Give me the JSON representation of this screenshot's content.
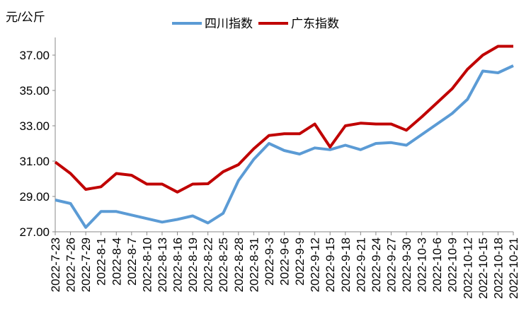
{
  "chart_data": {
    "type": "line",
    "y_axis_label": "元/公斤",
    "categories": [
      "2022-7-23",
      "2022-7-26",
      "2022-7-29",
      "2022-8-1",
      "2022-8-4",
      "2022-8-7",
      "2022-8-10",
      "2022-8-13",
      "2022-8-16",
      "2022-8-19",
      "2022-8-22",
      "2022-8-25",
      "2022-8-28",
      "2022-8-31",
      "2022-9-3",
      "2022-9-6",
      "2022-9-9",
      "2022-9-12",
      "2022-9-15",
      "2022-9-18",
      "2022-9-21",
      "2022-9-24",
      "2022-9-27",
      "2022-9-30",
      "2022-10-3",
      "2022-10-6",
      "2022-10-9",
      "2022-10-12",
      "2022-10-15",
      "2022-10-18",
      "2022-10-21"
    ],
    "series": [
      {
        "name": "四川指数",
        "color": "#5b9bd5",
        "values": [
          28.8,
          28.6,
          27.25,
          28.15,
          28.15,
          27.95,
          27.75,
          27.55,
          27.7,
          27.9,
          27.5,
          28.05,
          29.9,
          31.1,
          32.0,
          31.6,
          31.4,
          31.75,
          31.65,
          31.9,
          31.65,
          32.0,
          32.05,
          31.9,
          32.5,
          33.1,
          33.7,
          34.5,
          36.1,
          36.0,
          36.4
        ]
      },
      {
        "name": "广东指数",
        "color": "#c00000",
        "values": [
          30.95,
          30.3,
          29.4,
          29.55,
          30.3,
          30.2,
          29.7,
          29.7,
          29.25,
          29.7,
          29.72,
          30.4,
          30.8,
          31.7,
          32.45,
          32.55,
          32.55,
          33.1,
          31.8,
          33.0,
          33.15,
          33.1,
          33.1,
          32.75,
          33.5,
          34.3,
          35.1,
          36.2,
          37.0,
          37.5,
          37.5
        ]
      }
    ],
    "ylim": [
      27,
      38
    ],
    "yticks": [
      {
        "value": 27,
        "label": "27.00"
      },
      {
        "value": 29,
        "label": "29.00"
      },
      {
        "value": 31,
        "label": "31.00"
      },
      {
        "value": 33,
        "label": "33.00"
      },
      {
        "value": 35,
        "label": "35.00"
      },
      {
        "value": 37,
        "label": "37.00"
      }
    ],
    "grid": false,
    "legend": "top"
  }
}
